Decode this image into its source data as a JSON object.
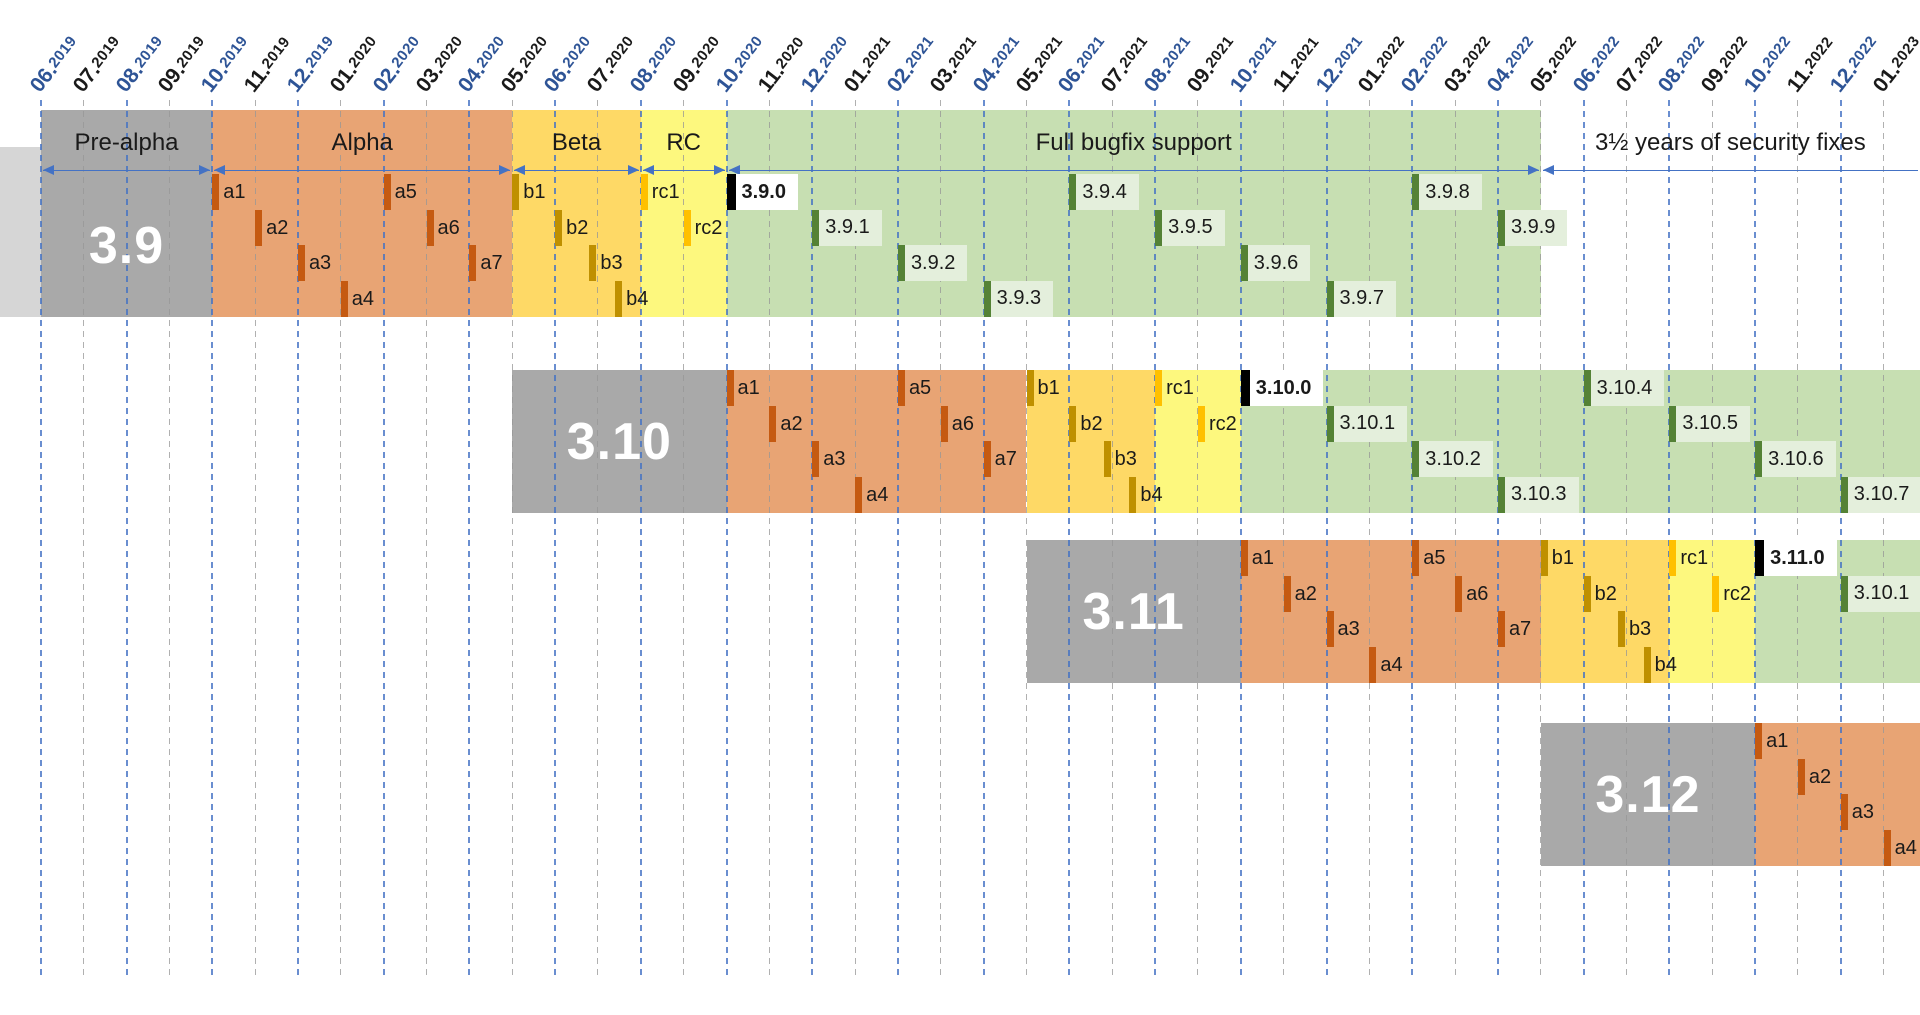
{
  "chart_data": {
    "type": "gantt",
    "title": "",
    "x_axis": {
      "unit": "month",
      "first": "06.2019",
      "last": "01.2023",
      "months": [
        {
          "label": "06.2019",
          "accent": true
        },
        {
          "label": "07.2019",
          "accent": false
        },
        {
          "label": "08.2019",
          "accent": true
        },
        {
          "label": "09.2019",
          "accent": false
        },
        {
          "label": "10.2019",
          "accent": true
        },
        {
          "label": "11.2019",
          "accent": false
        },
        {
          "label": "12.2019",
          "accent": true
        },
        {
          "label": "01.2020",
          "accent": false
        },
        {
          "label": "02.2020",
          "accent": true
        },
        {
          "label": "03.2020",
          "accent": false
        },
        {
          "label": "04.2020",
          "accent": true
        },
        {
          "label": "05.2020",
          "accent": false
        },
        {
          "label": "06.2020",
          "accent": true
        },
        {
          "label": "07.2020",
          "accent": false
        },
        {
          "label": "08.2020",
          "accent": true
        },
        {
          "label": "09.2020",
          "accent": false
        },
        {
          "label": "10.2020",
          "accent": true
        },
        {
          "label": "11.2020",
          "accent": false
        },
        {
          "label": "12.2020",
          "accent": true
        },
        {
          "label": "01.2021",
          "accent": false
        },
        {
          "label": "02.2021",
          "accent": true
        },
        {
          "label": "03.2021",
          "accent": false
        },
        {
          "label": "04.2021",
          "accent": true
        },
        {
          "label": "05.2021",
          "accent": false
        },
        {
          "label": "06.2021",
          "accent": true
        },
        {
          "label": "07.2021",
          "accent": false
        },
        {
          "label": "08.2021",
          "accent": true
        },
        {
          "label": "09.2021",
          "accent": false
        },
        {
          "label": "10.2021",
          "accent": true
        },
        {
          "label": "11.2021",
          "accent": false
        },
        {
          "label": "12.2021",
          "accent": true
        },
        {
          "label": "01.2022",
          "accent": false
        },
        {
          "label": "02.2022",
          "accent": true
        },
        {
          "label": "03.2022",
          "accent": false
        },
        {
          "label": "04.2022",
          "accent": true
        },
        {
          "label": "05.2022",
          "accent": false
        },
        {
          "label": "06.2022",
          "accent": true
        },
        {
          "label": "07.2022",
          "accent": false
        },
        {
          "label": "08.2022",
          "accent": true
        },
        {
          "label": "09.2022",
          "accent": false
        },
        {
          "label": "10.2022",
          "accent": true
        },
        {
          "label": "11.2022",
          "accent": false
        },
        {
          "label": "12.2022",
          "accent": true
        },
        {
          "label": "01.2023",
          "accent": false
        }
      ]
    },
    "phases": [
      {
        "label": "Pre-alpha",
        "start": 0,
        "end": 4,
        "on_white": false
      },
      {
        "label": "Alpha",
        "start": 4,
        "end": 11,
        "on_white": false
      },
      {
        "label": "Beta",
        "start": 11,
        "end": 14,
        "on_white": false
      },
      {
        "label": "RC",
        "start": 14,
        "end": 16,
        "on_white": false
      },
      {
        "label": "Full bugfix support",
        "start": 16,
        "end": 35,
        "on_white": false
      },
      {
        "label": "3½ years of security fixes",
        "start": 35,
        "end": null,
        "on_white": true
      }
    ],
    "rows": [
      {
        "version": "3.9",
        "has_phase_header": true,
        "stub_before": true,
        "segments": [
          {
            "phase": "pre-alpha",
            "start": 0,
            "end": 4
          },
          {
            "phase": "alpha",
            "start": 4,
            "end": 11
          },
          {
            "phase": "beta",
            "start": 11,
            "end": 14
          },
          {
            "phase": "rc",
            "start": 14,
            "end": 16
          },
          {
            "phase": "bugfix",
            "start": 16,
            "end": 35
          }
        ],
        "markers": [
          {
            "label": "a1",
            "m": 4,
            "level": 0,
            "type": "alpha"
          },
          {
            "label": "a2",
            "m": 5,
            "level": 1,
            "type": "alpha"
          },
          {
            "label": "a3",
            "m": 6,
            "level": 2,
            "type": "alpha"
          },
          {
            "label": "a4",
            "m": 7,
            "level": 3,
            "type": "alpha"
          },
          {
            "label": "a5",
            "m": 8,
            "level": 0,
            "type": "alpha"
          },
          {
            "label": "a6",
            "m": 9,
            "level": 1,
            "type": "alpha"
          },
          {
            "label": "a7",
            "m": 10,
            "level": 2,
            "type": "alpha"
          },
          {
            "label": "b1",
            "m": 11,
            "level": 0,
            "type": "beta"
          },
          {
            "label": "b2",
            "m": 12,
            "level": 1,
            "type": "beta"
          },
          {
            "label": "b3",
            "m": 12.8,
            "level": 2,
            "type": "beta"
          },
          {
            "label": "b4",
            "m": 13.4,
            "level": 3,
            "type": "beta"
          },
          {
            "label": "rc1",
            "m": 14,
            "level": 0,
            "type": "rc"
          },
          {
            "label": "rc2",
            "m": 15,
            "level": 1,
            "type": "rc"
          },
          {
            "label": "3.9.0",
            "m": 16,
            "level": 0,
            "type": "release0"
          },
          {
            "label": "3.9.1",
            "m": 18,
            "level": 1,
            "type": "release"
          },
          {
            "label": "3.9.2",
            "m": 20,
            "level": 2,
            "type": "release"
          },
          {
            "label": "3.9.3",
            "m": 22,
            "level": 3,
            "type": "release"
          },
          {
            "label": "3.9.4",
            "m": 24,
            "level": 0,
            "type": "release"
          },
          {
            "label": "3.9.5",
            "m": 26,
            "level": 1,
            "type": "release"
          },
          {
            "label": "3.9.6",
            "m": 28,
            "level": 2,
            "type": "release"
          },
          {
            "label": "3.9.7",
            "m": 30,
            "level": 3,
            "type": "release"
          },
          {
            "label": "3.9.8",
            "m": 32,
            "level": 0,
            "type": "release"
          },
          {
            "label": "3.9.9",
            "m": 34,
            "level": 1,
            "type": "release"
          }
        ]
      },
      {
        "version": "3.10",
        "has_phase_header": false,
        "stub_before": false,
        "segments": [
          {
            "phase": "pre-alpha",
            "start": 11,
            "end": 16
          },
          {
            "phase": "alpha",
            "start": 16,
            "end": 23
          },
          {
            "phase": "beta",
            "start": 23,
            "end": 26
          },
          {
            "phase": "rc",
            "start": 26,
            "end": 28
          },
          {
            "phase": "bugfix",
            "start": 28,
            "end": null
          }
        ],
        "markers": [
          {
            "label": "a1",
            "m": 16,
            "level": 0,
            "type": "alpha"
          },
          {
            "label": "a2",
            "m": 17,
            "level": 1,
            "type": "alpha"
          },
          {
            "label": "a3",
            "m": 18,
            "level": 2,
            "type": "alpha"
          },
          {
            "label": "a4",
            "m": 19,
            "level": 3,
            "type": "alpha"
          },
          {
            "label": "a5",
            "m": 20,
            "level": 0,
            "type": "alpha"
          },
          {
            "label": "a6",
            "m": 21,
            "level": 1,
            "type": "alpha"
          },
          {
            "label": "a7",
            "m": 22,
            "level": 2,
            "type": "alpha"
          },
          {
            "label": "b1",
            "m": 23,
            "level": 0,
            "type": "beta"
          },
          {
            "label": "b2",
            "m": 24,
            "level": 1,
            "type": "beta"
          },
          {
            "label": "b3",
            "m": 24.8,
            "level": 2,
            "type": "beta"
          },
          {
            "label": "b4",
            "m": 25.4,
            "level": 3,
            "type": "beta"
          },
          {
            "label": "rc1",
            "m": 26,
            "level": 0,
            "type": "rc"
          },
          {
            "label": "rc2",
            "m": 27,
            "level": 1,
            "type": "rc"
          },
          {
            "label": "3.10.0",
            "m": 28,
            "level": 0,
            "type": "release0"
          },
          {
            "label": "3.10.1",
            "m": 30,
            "level": 1,
            "type": "release"
          },
          {
            "label": "3.10.2",
            "m": 32,
            "level": 2,
            "type": "release"
          },
          {
            "label": "3.10.3",
            "m": 34,
            "level": 3,
            "type": "release"
          },
          {
            "label": "3.10.4",
            "m": 36,
            "level": 0,
            "type": "release"
          },
          {
            "label": "3.10.5",
            "m": 38,
            "level": 1,
            "type": "release"
          },
          {
            "label": "3.10.6",
            "m": 40,
            "level": 2,
            "type": "release"
          },
          {
            "label": "3.10.7",
            "m": 42,
            "level": 3,
            "type": "release"
          }
        ]
      },
      {
        "version": "3.11",
        "has_phase_header": false,
        "stub_before": false,
        "segments": [
          {
            "phase": "pre-alpha",
            "start": 23,
            "end": 28
          },
          {
            "phase": "alpha",
            "start": 28,
            "end": 35
          },
          {
            "phase": "beta",
            "start": 35,
            "end": 38
          },
          {
            "phase": "rc",
            "start": 38,
            "end": 40
          },
          {
            "phase": "bugfix",
            "start": 40,
            "end": null
          }
        ],
        "markers": [
          {
            "label": "a1",
            "m": 28,
            "level": 0,
            "type": "alpha"
          },
          {
            "label": "a2",
            "m": 29,
            "level": 1,
            "type": "alpha"
          },
          {
            "label": "a3",
            "m": 30,
            "level": 2,
            "type": "alpha"
          },
          {
            "label": "a4",
            "m": 31,
            "level": 3,
            "type": "alpha"
          },
          {
            "label": "a5",
            "m": 32,
            "level": 0,
            "type": "alpha"
          },
          {
            "label": "a6",
            "m": 33,
            "level": 1,
            "type": "alpha"
          },
          {
            "label": "a7",
            "m": 34,
            "level": 2,
            "type": "alpha"
          },
          {
            "label": "b1",
            "m": 35,
            "level": 0,
            "type": "beta"
          },
          {
            "label": "b2",
            "m": 36,
            "level": 1,
            "type": "beta"
          },
          {
            "label": "b3",
            "m": 36.8,
            "level": 2,
            "type": "beta"
          },
          {
            "label": "b4",
            "m": 37.4,
            "level": 3,
            "type": "beta"
          },
          {
            "label": "rc1",
            "m": 38,
            "level": 0,
            "type": "rc"
          },
          {
            "label": "rc2",
            "m": 39,
            "level": 1,
            "type": "rc"
          },
          {
            "label": "3.11.0",
            "m": 40,
            "level": 0,
            "type": "release0"
          },
          {
            "label": "3.10.1",
            "m": 42,
            "level": 1,
            "type": "release"
          }
        ]
      },
      {
        "version": "3.12",
        "has_phase_header": false,
        "stub_before": false,
        "segments": [
          {
            "phase": "pre-alpha",
            "start": 35,
            "end": 40
          },
          {
            "phase": "alpha",
            "start": 40,
            "end": null
          }
        ],
        "markers": [
          {
            "label": "a1",
            "m": 40,
            "level": 0,
            "type": "alpha"
          },
          {
            "label": "a2",
            "m": 41,
            "level": 1,
            "type": "alpha"
          },
          {
            "label": "a3",
            "m": 42,
            "level": 2,
            "type": "alpha"
          },
          {
            "label": "a4",
            "m": 43,
            "level": 3,
            "type": "alpha"
          }
        ]
      }
    ]
  },
  "colors": {
    "pre_alpha_band": "#a9a9a9",
    "pre_alpha_stub": "#d6d6d6",
    "alpha_band": "#e8a474",
    "alpha_marker": "#c55a11",
    "beta_band": "#fed966",
    "beta_marker": "#bf9000",
    "rc_band": "#fdf87e",
    "rc_marker": "#ffc000",
    "bugfix_band": "#c7dfb2",
    "bugfix_marker": "#548235",
    "bugfix_chip": "#e4efdc",
    "release0_marker": "#000000",
    "release0_chip": "#ffffff",
    "grid_accent": "#4472c4",
    "grid_plain": "#a6a6a6",
    "month_accent": "#2e5496",
    "month_plain": "#1a1a1a",
    "arrow": "#4472c4",
    "version_text": "#ffffff",
    "label_text": "#1a1a1a"
  }
}
